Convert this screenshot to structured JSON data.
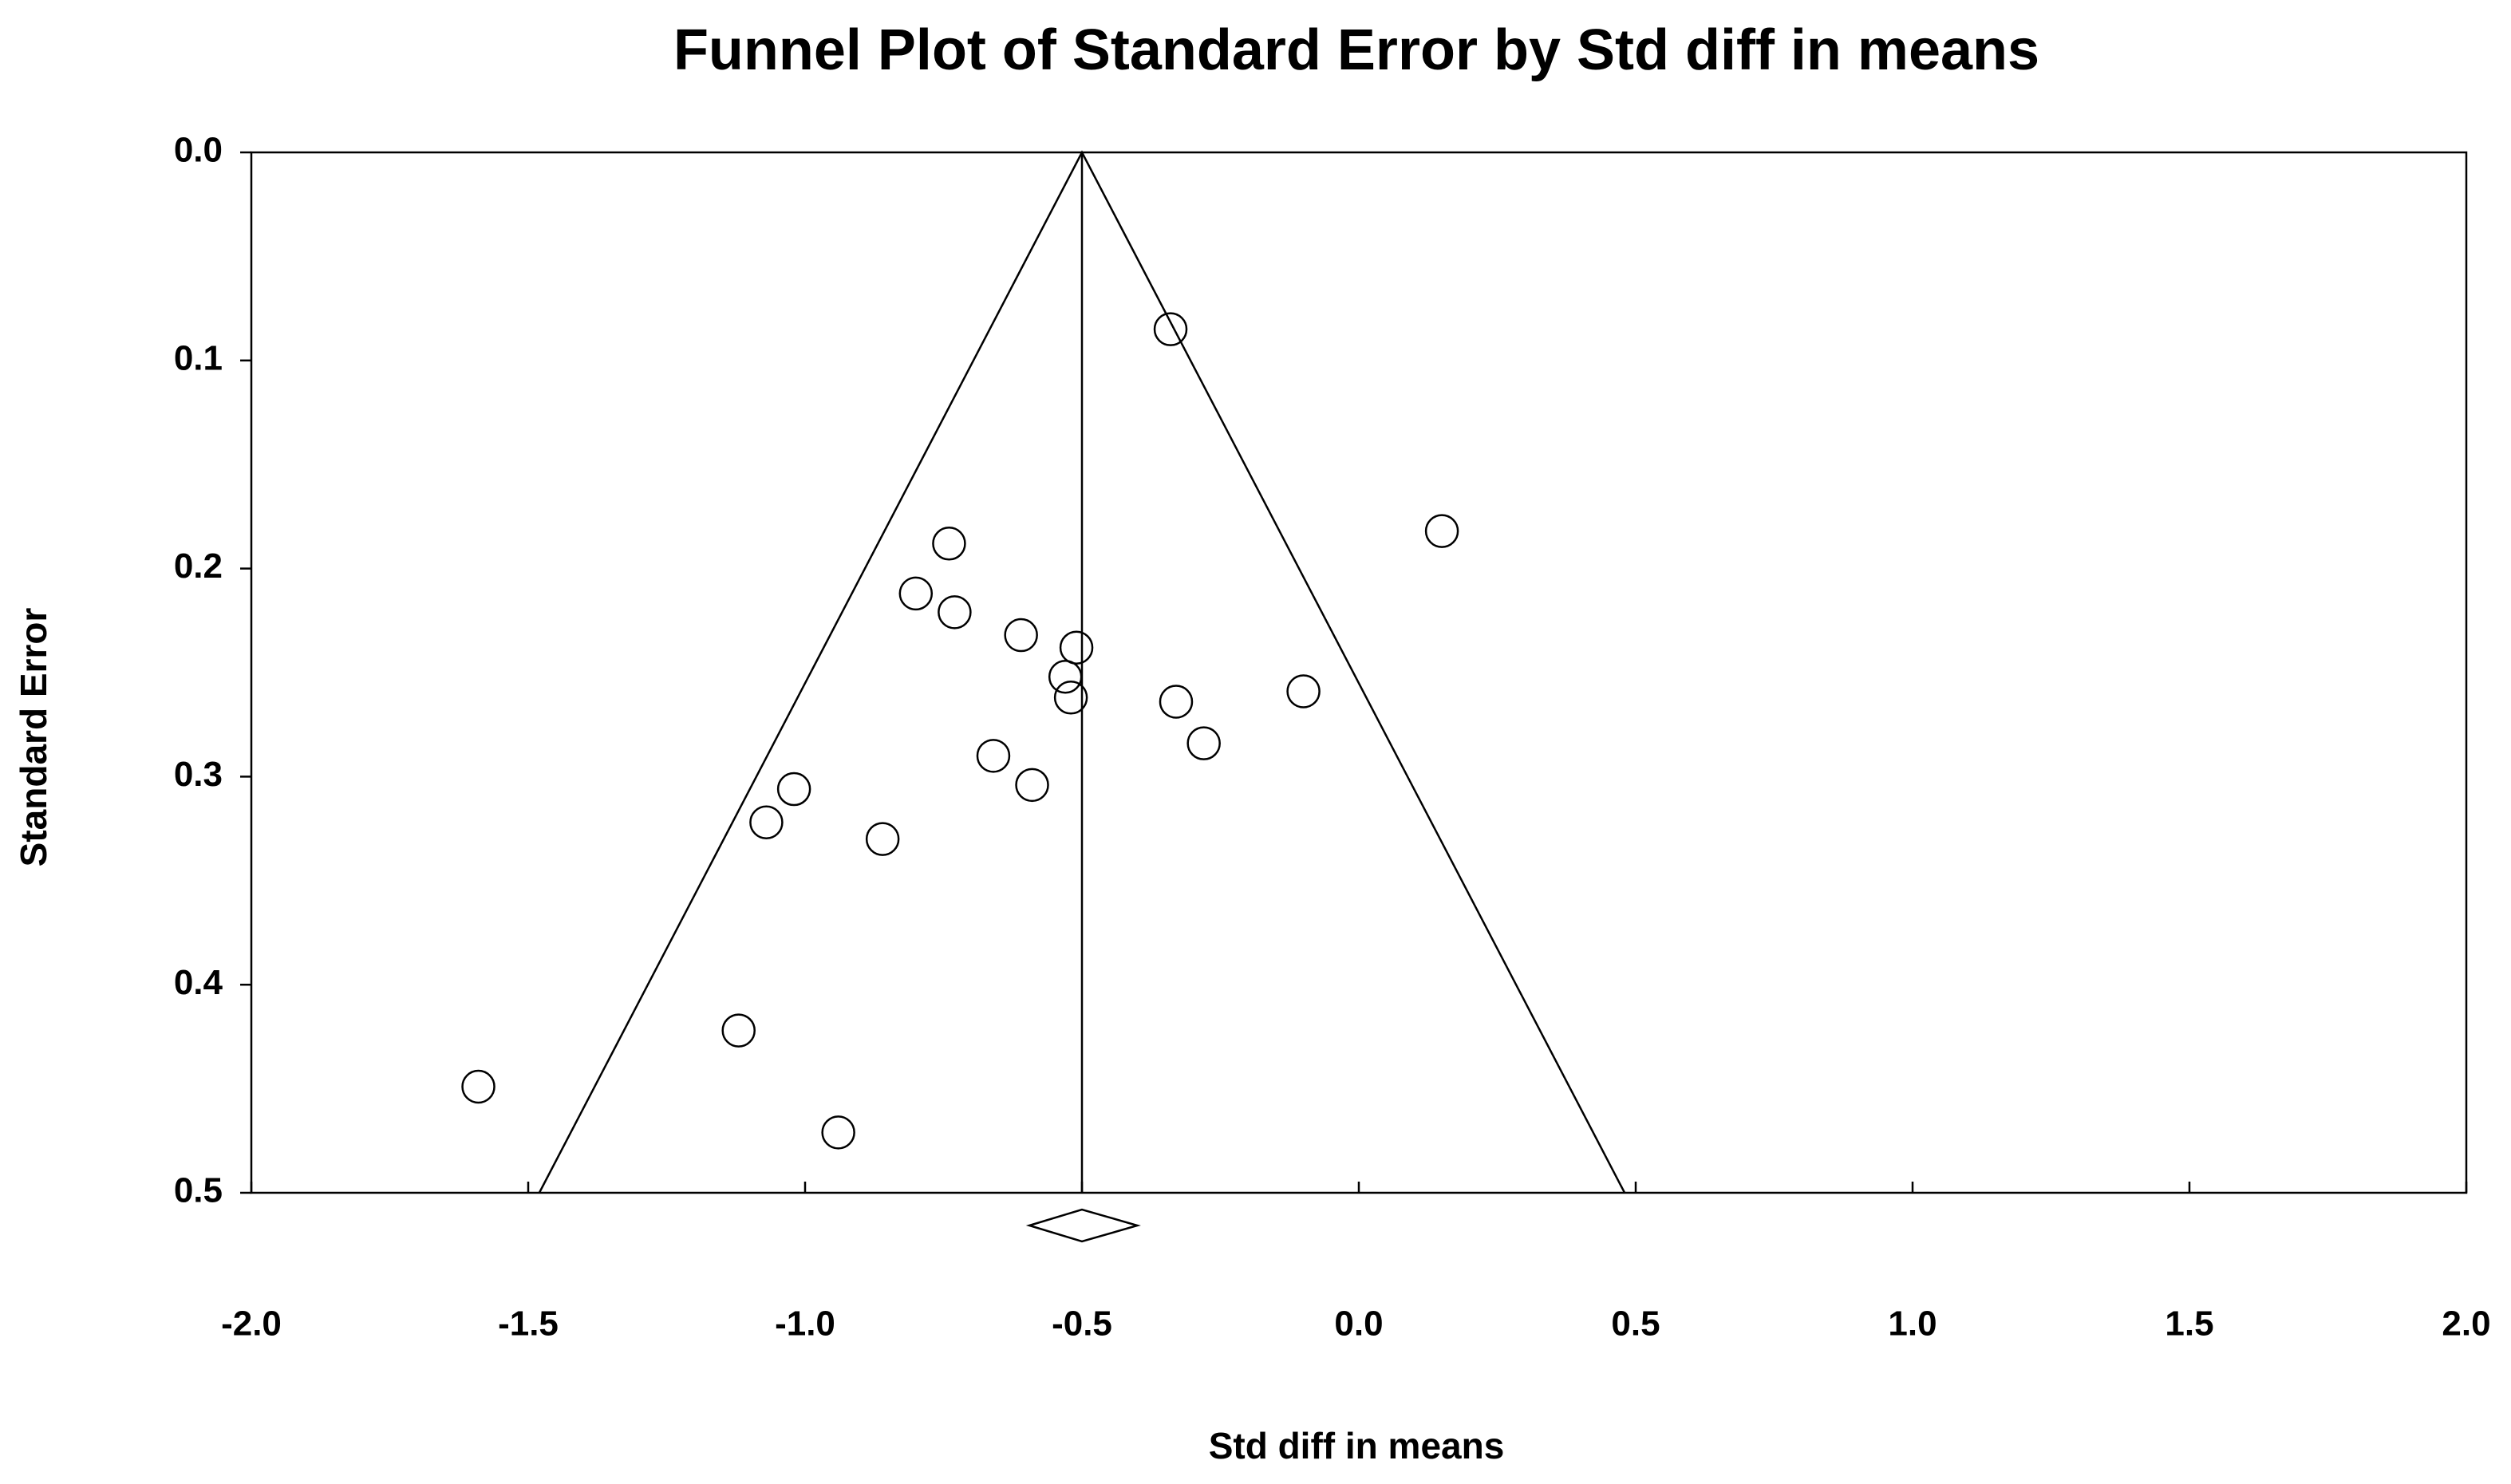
{
  "chart_data": {
    "type": "funnel",
    "title": "Funnel Plot of Standard Error by Std diff in means",
    "x_label": "Std diff in means",
    "y_label": "Standard Error",
    "xlim": [
      -2,
      2
    ],
    "ylim": [
      0,
      0.5
    ],
    "y_inverted": true,
    "xticks": [
      {
        "value": -2,
        "label": "-2.0"
      },
      {
        "value": -1.5,
        "label": "-1.5"
      },
      {
        "value": -1,
        "label": "-1.0"
      },
      {
        "value": -0.5,
        "label": "-0.5"
      },
      {
        "value": 0,
        "label": "0.0"
      },
      {
        "value": 0.5,
        "label": "0.5"
      },
      {
        "value": 1,
        "label": "1.0"
      },
      {
        "value": 1.5,
        "label": "1.5"
      },
      {
        "value": 2,
        "label": "2.0"
      }
    ],
    "yticks": [
      {
        "value": 0,
        "label": "0.0"
      },
      0.1,
      0.2,
      0.3,
      0.4,
      0.5
    ],
    "color": "#000000",
    "x": [
      -0.34,
      0.15,
      -0.74,
      -0.8,
      -0.73,
      -0.61,
      -0.51,
      -0.53,
      -0.52,
      -0.33,
      -0.1,
      -0.28,
      -0.66,
      -0.59,
      -1.02,
      -1.07,
      -0.86,
      -1.12,
      -1.59,
      -0.94
    ],
    "values": [
      0.085,
      0.182,
      0.188,
      0.212,
      0.221,
      0.232,
      0.238,
      0.252,
      0.262,
      0.264,
      0.259,
      0.284,
      0.29,
      0.304,
      0.306,
      0.322,
      0.33,
      0.422,
      0.449,
      0.471
    ],
    "mean_line": -0.5,
    "funnel": {
      "x": [
        -1.48,
        -0.5,
        0.48
      ],
      "y": [
        0.5,
        0,
        0.5
      ]
    },
    "summary": {
      "estimate": -0.5,
      "lower": -0.595,
      "upper": -0.4
    }
  }
}
